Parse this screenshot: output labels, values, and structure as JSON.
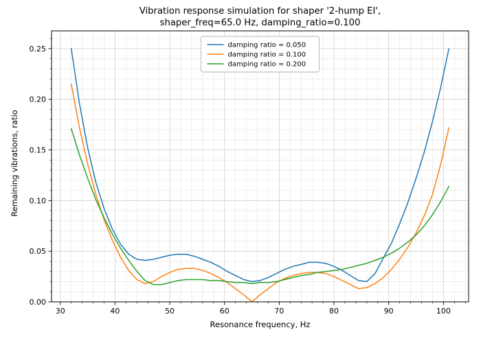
{
  "figure": {
    "title_lines": [
      "Vibration response simulation for shaper '2-hump EI',",
      "shaper_freq=65.0 Hz, damping_ratio=0.100"
    ],
    "xlabel": "Resonance frequency, Hz",
    "ylabel": "Remaining vibrations, ratio"
  },
  "chart_data": {
    "type": "line",
    "title": "Vibration response simulation for shaper '2-hump EI', shaper_freq=65.0 Hz, damping_ratio=0.100",
    "xlabel": "Resonance frequency, Hz",
    "ylabel": "Remaining vibrations, ratio",
    "xlim": [
      28.4,
      104.6
    ],
    "ylim": [
      0.0,
      0.2675
    ],
    "xticks": [
      30,
      40,
      50,
      60,
      70,
      80,
      90,
      100
    ],
    "yticks": [
      0.0,
      0.05,
      0.1,
      0.15,
      0.2,
      0.25
    ],
    "minor_x_step": 2,
    "minor_y_step": 0.01,
    "grid": true,
    "legend_position": "upper center",
    "colors": {
      "major_grid": "#cfcfcf",
      "minor_grid": "#e8e8e8",
      "spine": "#000000"
    },
    "x": [
      32,
      33.5,
      35,
      36.5,
      38,
      39.5,
      41,
      42.5,
      44,
      45.5,
      47,
      48.5,
      50,
      51.5,
      53,
      54.5,
      56,
      57.5,
      59,
      60.5,
      62,
      63.5,
      65,
      66.5,
      68,
      69.5,
      71,
      72.5,
      74,
      75.5,
      77,
      78.5,
      80,
      81.5,
      83,
      84.5,
      86,
      87.5,
      89,
      90.5,
      92,
      93.5,
      95,
      96.5,
      98,
      99.5,
      101
    ],
    "series": [
      {
        "name": "damping ratio = 0.050",
        "color": "#1f77b4",
        "values": [
          0.25,
          0.196,
          0.152,
          0.118,
          0.092,
          0.072,
          0.057,
          0.047,
          0.042,
          0.041,
          0.042,
          0.044,
          0.046,
          0.047,
          0.047,
          0.045,
          0.042,
          0.039,
          0.035,
          0.03,
          0.026,
          0.022,
          0.02,
          0.021,
          0.024,
          0.028,
          0.032,
          0.035,
          0.037,
          0.039,
          0.039,
          0.038,
          0.035,
          0.031,
          0.026,
          0.021,
          0.02,
          0.028,
          0.043,
          0.058,
          0.077,
          0.098,
          0.122,
          0.148,
          0.178,
          0.212,
          0.25
        ]
      },
      {
        "name": "damping ratio = 0.100",
        "color": "#ff7f0e",
        "values": [
          0.215,
          0.172,
          0.136,
          0.106,
          0.081,
          0.061,
          0.044,
          0.031,
          0.022,
          0.018,
          0.02,
          0.025,
          0.029,
          0.032,
          0.033,
          0.033,
          0.031,
          0.028,
          0.024,
          0.019,
          0.013,
          0.007,
          0.0,
          0.007,
          0.013,
          0.019,
          0.023,
          0.026,
          0.028,
          0.029,
          0.029,
          0.028,
          0.025,
          0.021,
          0.017,
          0.013,
          0.014,
          0.018,
          0.024,
          0.032,
          0.042,
          0.054,
          0.068,
          0.085,
          0.106,
          0.136,
          0.172
        ]
      },
      {
        "name": "damping ratio = 0.200",
        "color": "#2ca02c",
        "values": [
          0.171,
          0.145,
          0.122,
          0.101,
          0.083,
          0.067,
          0.053,
          0.041,
          0.03,
          0.021,
          0.017,
          0.017,
          0.019,
          0.021,
          0.022,
          0.022,
          0.022,
          0.021,
          0.021,
          0.02,
          0.019,
          0.019,
          0.018,
          0.019,
          0.019,
          0.02,
          0.022,
          0.024,
          0.026,
          0.027,
          0.029,
          0.03,
          0.031,
          0.032,
          0.034,
          0.036,
          0.038,
          0.041,
          0.044,
          0.048,
          0.053,
          0.059,
          0.066,
          0.075,
          0.086,
          0.099,
          0.114
        ]
      }
    ]
  }
}
